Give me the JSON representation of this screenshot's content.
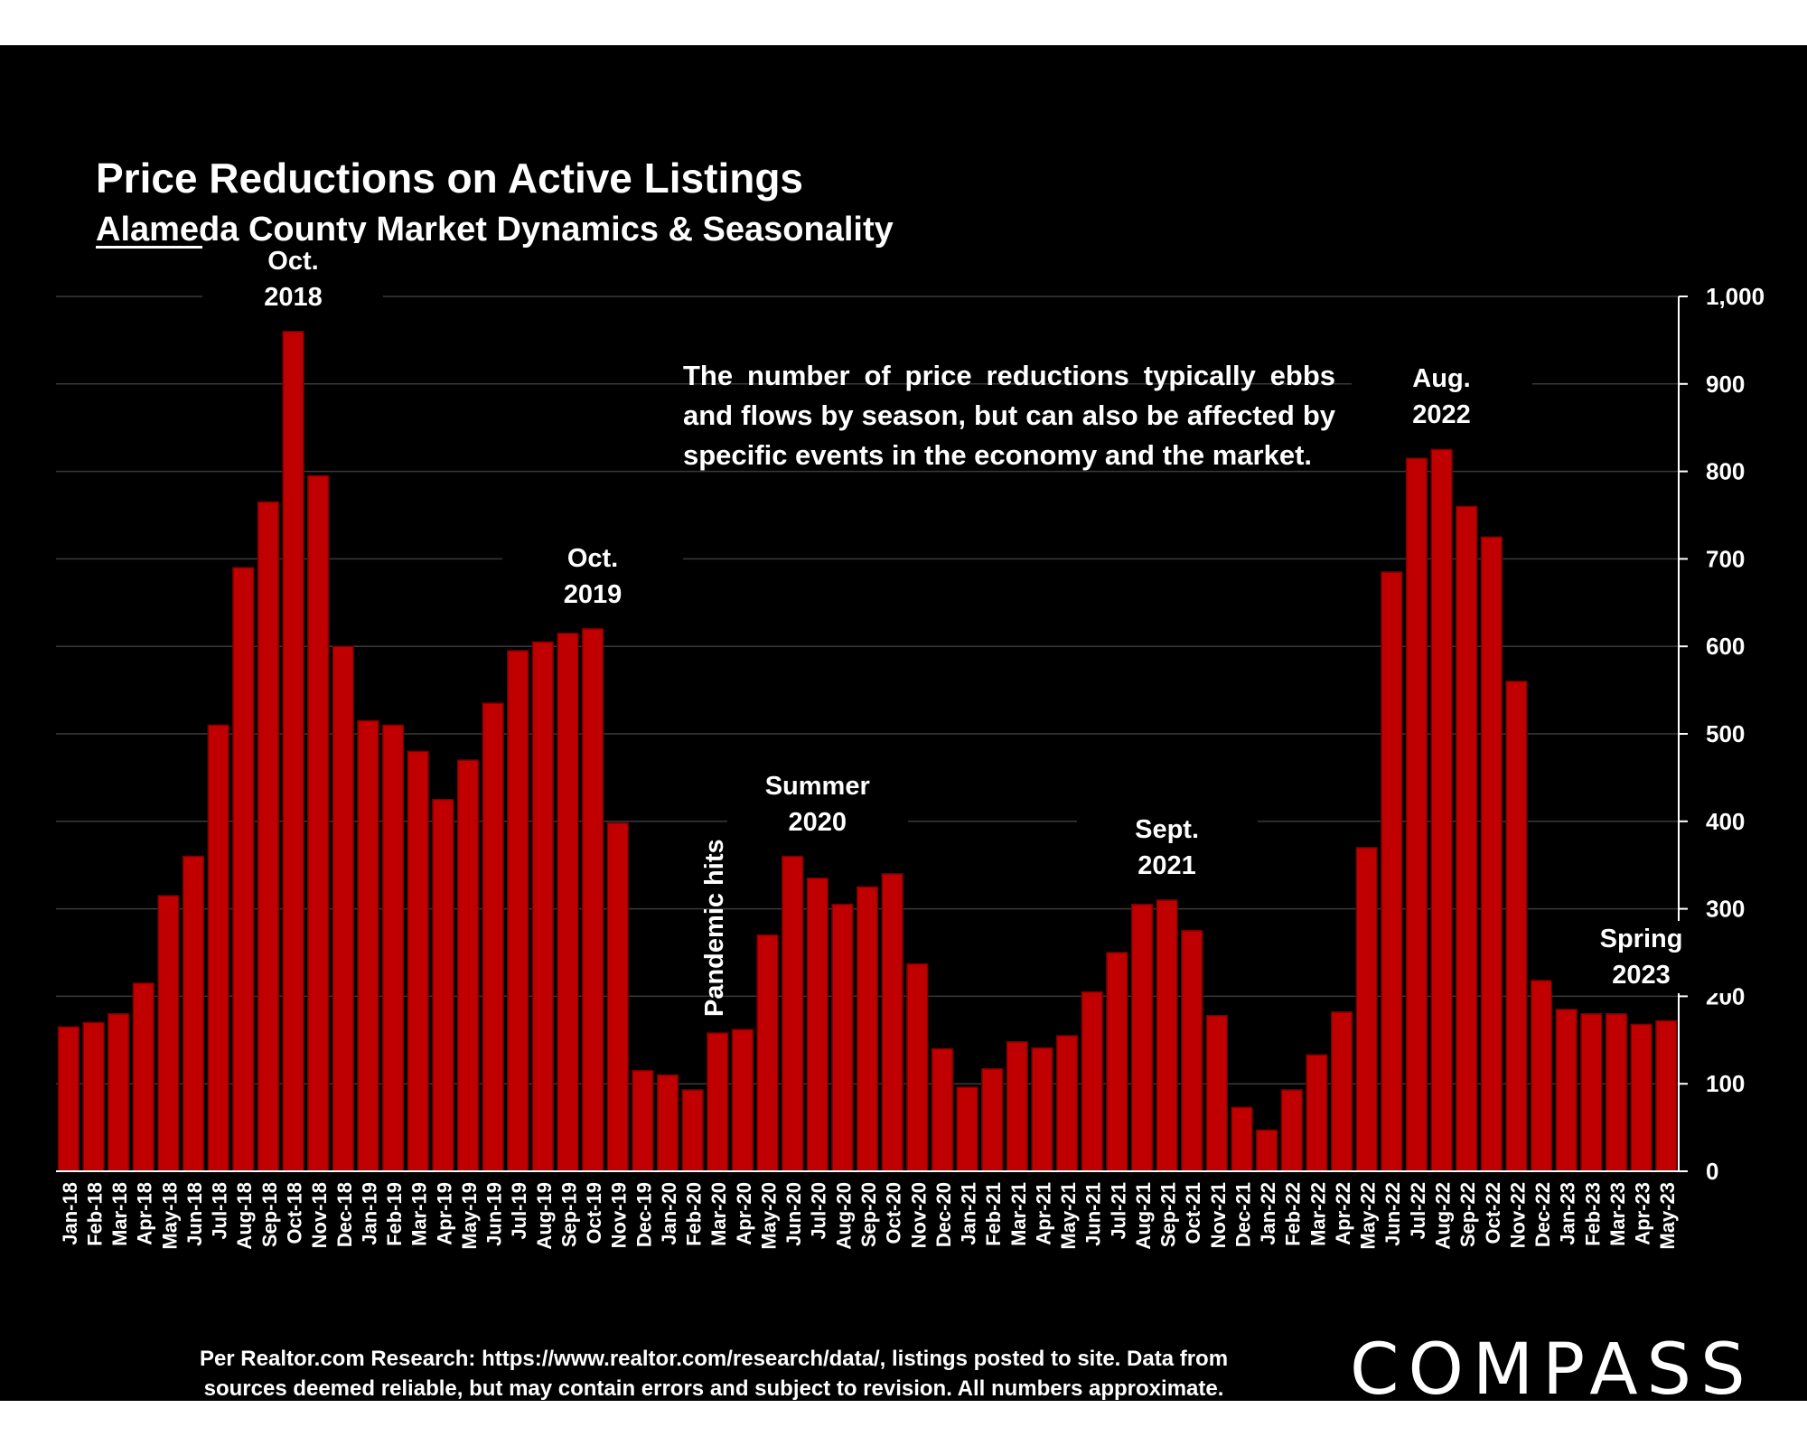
{
  "title": "Price Reductions on Active Listings",
  "subtitle_underlined": "Alameda County",
  "subtitle_rest": " Market Dynamics & Seasonality",
  "note": "The number of price reductions typically ebbs and flows by season, but can also be affected by specific events in the economy and the market.",
  "footer_line1": "Per Realtor.com Research:  https://www.realtor.com/research/data/, listings posted to site. Data from",
  "footer_line2": "sources deemed reliable, but may contain errors and subject to revision. All numbers approximate.",
  "logo": "COMPASS",
  "colors": {
    "background": "#000000",
    "bar": "#c00000",
    "bar_edge": "#7a0000",
    "text": "#ffffff"
  },
  "chart_data": {
    "type": "bar",
    "categories": [
      "Jan-18",
      "Feb-18",
      "Mar-18",
      "Apr-18",
      "May-18",
      "Jun-18",
      "Jul-18",
      "Aug-18",
      "Sep-18",
      "Oct-18",
      "Nov-18",
      "Dec-18",
      "Jan-19",
      "Feb-19",
      "Mar-19",
      "Apr-19",
      "May-19",
      "Jun-19",
      "Jul-19",
      "Aug-19",
      "Sep-19",
      "Oct-19",
      "Nov-19",
      "Dec-19",
      "Jan-20",
      "Feb-20",
      "Mar-20",
      "Apr-20",
      "May-20",
      "Jun-20",
      "Jul-20",
      "Aug-20",
      "Sep-20",
      "Oct-20",
      "Nov-20",
      "Dec-20",
      "Jan-21",
      "Feb-21",
      "Mar-21",
      "Apr-21",
      "May-21",
      "Jun-21",
      "Jul-21",
      "Aug-21",
      "Sep-21",
      "Oct-21",
      "Nov-21",
      "Dec-21",
      "Jan-22",
      "Feb-22",
      "Mar-22",
      "Apr-22",
      "May-22",
      "Jun-22",
      "Jul-22",
      "Aug-22",
      "Sep-22",
      "Oct-22",
      "Nov-22",
      "Dec-22",
      "Jan-23",
      "Feb-23",
      "Mar-23",
      "Apr-23",
      "May-23"
    ],
    "values": [
      165,
      170,
      180,
      215,
      315,
      360,
      510,
      690,
      765,
      960,
      795,
      600,
      515,
      510,
      480,
      425,
      470,
      535,
      595,
      605,
      615,
      620,
      398,
      115,
      110,
      93,
      158,
      162,
      270,
      360,
      335,
      305,
      325,
      340,
      237,
      140,
      96,
      117,
      148,
      141,
      155,
      205,
      250,
      305,
      310,
      275,
      178,
      73,
      47,
      93,
      133,
      182,
      370,
      685,
      815,
      825,
      760,
      725,
      560,
      218,
      185,
      180,
      180,
      168,
      172
    ],
    "ylim": [
      0,
      1000
    ],
    "y_ticks": [
      0,
      100,
      200,
      300,
      400,
      500,
      600,
      700,
      800,
      900,
      1000
    ],
    "y_tick_labels": [
      "0",
      "100",
      "200",
      "300",
      "400",
      "500",
      "600",
      "700",
      "800",
      "900",
      "1,000"
    ],
    "grid": true,
    "y_axis_side": "right",
    "annotations": [
      {
        "text": "Oct.\n2018",
        "category": "Oct-18",
        "value": 960
      },
      {
        "text": "Oct.\n2019",
        "category": "Oct-19",
        "value": 620
      },
      {
        "text": "Pandemic hits",
        "category": "Mar-20",
        "value": 158,
        "vertical": true
      },
      {
        "text": "Summer\n2020",
        "category": "Jul-20",
        "value": 360
      },
      {
        "text": "Sept.\n2021",
        "category": "Sep-21",
        "value": 310
      },
      {
        "text": "Aug.\n2022",
        "category": "Aug-22",
        "value": 825
      },
      {
        "text": "Spring\n2023",
        "category": "Apr-23",
        "value": 185
      }
    ]
  }
}
